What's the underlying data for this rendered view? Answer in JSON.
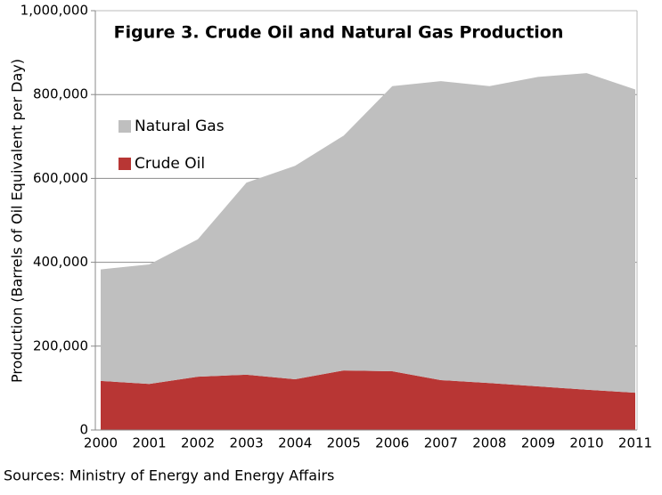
{
  "chart_data": {
    "type": "area",
    "stacked": true,
    "title": "Figure 3. Crude Oil and Natural Gas Production",
    "y_label": "Production (Barrels of Oil Equivalent per Day)",
    "source": "Sources: Ministry of Energy and Energy Affairs",
    "categories": [
      "2000",
      "2001",
      "2002",
      "2003",
      "2004",
      "2005",
      "2006",
      "2007",
      "2008",
      "2009",
      "2010",
      "2011"
    ],
    "series": [
      {
        "name": "Crude Oil",
        "color": "#b83634",
        "values": [
          117000,
          110000,
          127000,
          132000,
          121000,
          142000,
          140000,
          119000,
          112000,
          104000,
          96000,
          89000
        ]
      },
      {
        "name": "Natural Gas",
        "color": "#bfbfbf",
        "values": [
          266000,
          285000,
          328000,
          458000,
          509000,
          560000,
          680000,
          713000,
          708000,
          738000,
          755000,
          723000
        ]
      }
    ],
    "ylim": [
      0,
      1000000
    ],
    "yticks": [
      0,
      {
        "value": 200000,
        "label": "200,000"
      },
      {
        "value": 400000,
        "label": "400,000"
      },
      {
        "value": 600000,
        "label": "600,000"
      },
      {
        "value": 800000,
        "label": "800,000"
      },
      {
        "value": 1000000,
        "label": "1,000,000"
      }
    ],
    "grid": true,
    "legend": "upper left"
  }
}
